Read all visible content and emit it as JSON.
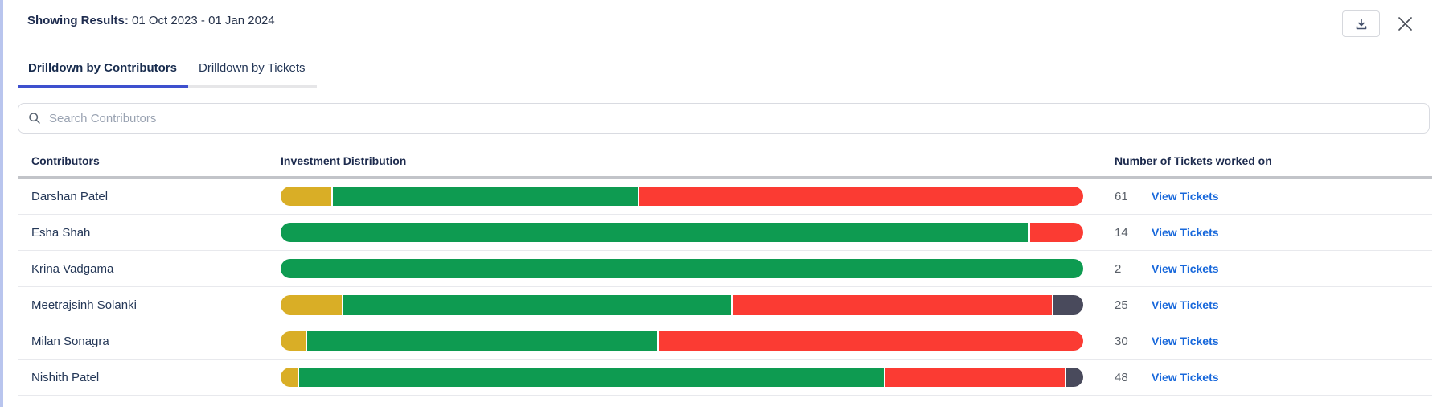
{
  "header": {
    "results_label": "Showing Results:",
    "results_value": "01 Oct 2023 - 01 Jan 2024"
  },
  "toolbar": {
    "download_icon": "download-icon",
    "close_icon": "close-icon"
  },
  "tabs": [
    {
      "label": "Drilldown by Contributors",
      "active": true
    },
    {
      "label": "Drilldown by Tickets",
      "active": false
    }
  ],
  "search": {
    "icon": "search-icon",
    "placeholder": "Search Contributors",
    "value": ""
  },
  "table": {
    "columns": {
      "contributors": "Contributors",
      "distribution": "Investment Distribution",
      "tickets": "Number of Tickets worked on"
    },
    "link_label": "View Tickets",
    "rows": [
      {
        "name": "Darshan Patel",
        "tickets": "61",
        "segments": [
          {
            "color": "yellow",
            "pct": 6.3
          },
          {
            "color": "green",
            "pct": 38.2
          },
          {
            "color": "red",
            "pct": 55.5
          }
        ]
      },
      {
        "name": "Esha Shah",
        "tickets": "14",
        "segments": [
          {
            "color": "green",
            "pct": 93.4
          },
          {
            "color": "red",
            "pct": 6.6
          }
        ]
      },
      {
        "name": "Krina Vadgama",
        "tickets": "2",
        "segments": [
          {
            "color": "green",
            "pct": 100
          }
        ]
      },
      {
        "name": "Meetrajsinh Solanki",
        "tickets": "25",
        "segments": [
          {
            "color": "yellow",
            "pct": 7.7
          },
          {
            "color": "green",
            "pct": 48.5
          },
          {
            "color": "red",
            "pct": 40.1
          },
          {
            "color": "dark",
            "pct": 3.7
          }
        ]
      },
      {
        "name": "Milan Sonagra",
        "tickets": "30",
        "segments": [
          {
            "color": "yellow",
            "pct": 3.1
          },
          {
            "color": "green",
            "pct": 43.8
          },
          {
            "color": "red",
            "pct": 53.1
          }
        ]
      },
      {
        "name": "Nishith Patel",
        "tickets": "48",
        "segments": [
          {
            "color": "yellow",
            "pct": 2.1
          },
          {
            "color": "green",
            "pct": 73.3
          },
          {
            "color": "red",
            "pct": 22.5
          },
          {
            "color": "dark",
            "pct": 2.1
          }
        ]
      }
    ]
  },
  "colors": {
    "yellow": "#D9AE26",
    "green": "#0E9B51",
    "red": "#FB3B33",
    "dark": "#494A5C",
    "link_blue": "#1868DB",
    "tab_active_underline": "#3E50CE"
  }
}
